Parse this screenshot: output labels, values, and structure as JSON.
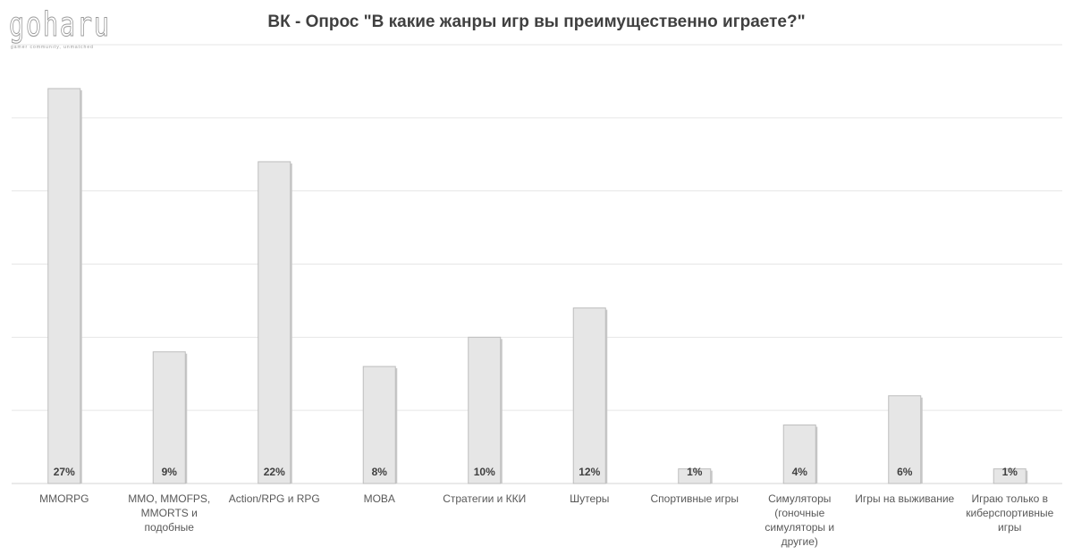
{
  "logo": {
    "wordmark": "goharu",
    "tagline": "gamer community, unmatched"
  },
  "chart_data": {
    "type": "bar",
    "title": "ВК - Опрос \"В какие жанры игр вы преимущественно играете?\"",
    "xlabel": "",
    "ylabel": "",
    "categories": [
      "MMORPG",
      "MMO, MMOFPS, MMORTS и подобные",
      "Action/RPG и RPG",
      "MOBA",
      "Стратегии и ККИ",
      "Шутеры",
      "Спортивные игры",
      "Симуляторы (гоночные симуляторы и другие)",
      "Игры на выживание",
      "Играю только в киберспортивные игры"
    ],
    "values": [
      27,
      9,
      22,
      8,
      10,
      12,
      1,
      4,
      6,
      1
    ],
    "value_labels": [
      "27%",
      "9%",
      "22%",
      "8%",
      "10%",
      "12%",
      "1%",
      "4%",
      "6%",
      "1%"
    ],
    "ylim": [
      0,
      30
    ],
    "y_gridlines": [
      5,
      10,
      15,
      20,
      25,
      30
    ],
    "y_ticks_visible": false,
    "legend": "none",
    "grid": true,
    "colors": {
      "bar_fill": "#e6e6e6",
      "bar_edge": "#bdbdbd",
      "gridline": "#e6e6e6"
    }
  }
}
